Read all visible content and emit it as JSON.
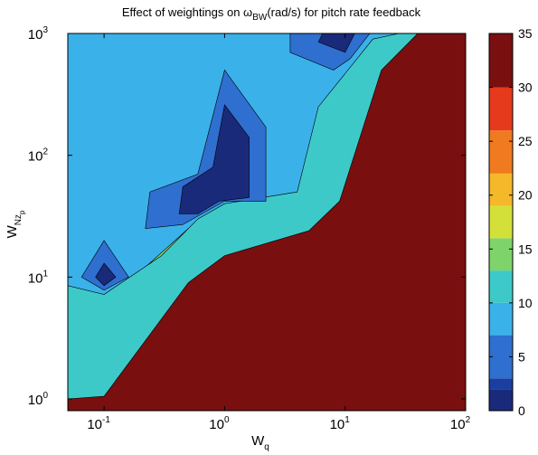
{
  "chart_data": {
    "type": "contour",
    "title": {
      "prefix": "Effect of weightings on ",
      "symbol": "ω",
      "symbol_sub": "BW",
      "suffix": "(rad/s) for pitch rate feedback"
    },
    "xlabel": {
      "base": "W",
      "sub": "q"
    },
    "ylabel": {
      "base": "W",
      "sub": "Nz",
      "subsub": "p"
    },
    "x_scale": "log",
    "y_scale": "log",
    "xlim": [
      0.05,
      100
    ],
    "ylim": [
      0.8,
      1000
    ],
    "x_ticks": [
      {
        "base": "10",
        "exp": "-1",
        "value": 0.1
      },
      {
        "base": "10",
        "exp": "0",
        "value": 1
      },
      {
        "base": "10",
        "exp": "1",
        "value": 10
      },
      {
        "base": "10",
        "exp": "2",
        "value": 100
      }
    ],
    "y_ticks": [
      {
        "base": "10",
        "exp": "0",
        "value": 1
      },
      {
        "base": "10",
        "exp": "1",
        "value": 10
      },
      {
        "base": "10",
        "exp": "2",
        "value": 100
      },
      {
        "base": "10",
        "exp": "3",
        "value": 1000
      }
    ],
    "colorbar": {
      "min": 0,
      "max": 35,
      "ticks": [
        "0",
        "5",
        "10",
        "15",
        "20",
        "25",
        "30",
        "35"
      ]
    },
    "levels": [
      {
        "value": 3,
        "color": "#1b3fa0"
      },
      {
        "value": 7,
        "color": "#2f6fcf"
      },
      {
        "value": 10,
        "color": "#3bb1ea"
      },
      {
        "value": 13,
        "color": "#3ec9c9"
      },
      {
        "value": 16,
        "color": "#7ed46a"
      },
      {
        "value": 19,
        "color": "#d3e03a"
      },
      {
        "value": 22,
        "color": "#f5b82a"
      },
      {
        "value": 26,
        "color": "#f07a1f"
      },
      {
        "value": 30,
        "color": "#e63a1c"
      },
      {
        "value": 35,
        "color": "#7a0f10"
      }
    ],
    "background_value": 2,
    "background_color": "#1a2a7a",
    "upper_region_color": "#3bb1ea",
    "regions": [
      {
        "name": "red-region",
        "color": "#e63a1c",
        "points": [
          [
            0.05,
            3
          ],
          [
            0.1,
            2.4
          ],
          [
            0.5,
            10
          ],
          [
            1,
            16
          ],
          [
            5,
            25
          ],
          [
            10,
            45
          ],
          [
            20,
            600
          ],
          [
            50,
            1000
          ],
          [
            100,
            1000
          ],
          [
            100,
            0.8
          ],
          [
            0.05,
            0.8
          ]
        ]
      },
      {
        "name": "orange-region",
        "color": "#f07a1f",
        "points": [
          [
            0.05,
            4.5
          ],
          [
            0.1,
            3.2
          ],
          [
            0.5,
            14
          ],
          [
            1,
            22
          ],
          [
            5,
            30
          ],
          [
            8,
            100
          ],
          [
            20,
            600
          ],
          [
            40,
            1000
          ],
          [
            100,
            1000
          ],
          [
            100,
            0.8
          ],
          [
            0.05,
            0.8
          ]
        ]
      },
      {
        "name": "yellow-region",
        "color": "#f5b82a",
        "points": [
          [
            0.05,
            5.5
          ],
          [
            0.1,
            4.2
          ],
          [
            0.5,
            17
          ],
          [
            1,
            26
          ],
          [
            5,
            36
          ],
          [
            8,
            130
          ],
          [
            20,
            700
          ],
          [
            35,
            1000
          ],
          [
            100,
            1000
          ],
          [
            100,
            0.8
          ],
          [
            0.05,
            0.8
          ]
        ]
      },
      {
        "name": "lime-region",
        "color": "#d3e03a",
        "points": [
          [
            0.05,
            6.5
          ],
          [
            0.1,
            5.2
          ],
          [
            0.5,
            21
          ],
          [
            1,
            31
          ],
          [
            5,
            42
          ],
          [
            7,
            170
          ],
          [
            20,
            800
          ],
          [
            32,
            1000
          ],
          [
            100,
            1000
          ],
          [
            100,
            0.8
          ],
          [
            0.05,
            0.8
          ]
        ]
      },
      {
        "name": "green-region",
        "color": "#7ed46a",
        "points": [
          [
            0.05,
            7.5
          ],
          [
            0.1,
            6
          ],
          [
            0.5,
            25
          ],
          [
            1,
            36
          ],
          [
            4.5,
            50
          ],
          [
            6.5,
            200
          ],
          [
            18,
            850
          ],
          [
            30,
            1000
          ],
          [
            100,
            1000
          ],
          [
            100,
            0.8
          ],
          [
            0.05,
            0.8
          ]
        ]
      },
      {
        "name": "teal-region",
        "color": "#3ec9c9",
        "points": [
          [
            0.05,
            8.5
          ],
          [
            0.1,
            7.2
          ],
          [
            0.3,
            15
          ],
          [
            0.6,
            30
          ],
          [
            1,
            40
          ],
          [
            4,
            50
          ],
          [
            6,
            250
          ],
          [
            17,
            900
          ],
          [
            28,
            1000
          ],
          [
            100,
            1000
          ],
          [
            100,
            0.8
          ],
          [
            0.05,
            0.8
          ]
        ]
      },
      {
        "name": "dark-red-region",
        "color": "#7a0f10",
        "points": [
          [
            0.05,
            1
          ],
          [
            0.1,
            1.05
          ],
          [
            0.5,
            9
          ],
          [
            1,
            15
          ],
          [
            5,
            24
          ],
          [
            9,
            42
          ],
          [
            20,
            500
          ],
          [
            40,
            1000
          ],
          [
            100,
            1000
          ],
          [
            100,
            0.8
          ],
          [
            0.05,
            0.8
          ]
        ]
      },
      {
        "name": "blue-island-left",
        "color": "#2f6fcf",
        "points": [
          [
            0.065,
            10
          ],
          [
            0.1,
            20
          ],
          [
            0.16,
            10
          ],
          [
            0.1,
            7.8
          ]
        ]
      },
      {
        "name": "navy-island-left",
        "color": "#1a2a7a",
        "points": [
          [
            0.085,
            10
          ],
          [
            0.1,
            13
          ],
          [
            0.125,
            10
          ],
          [
            0.1,
            8.5
          ]
        ]
      },
      {
        "name": "blue-island-center",
        "color": "#2f6fcf",
        "points": [
          [
            0.22,
            25
          ],
          [
            0.24,
            50
          ],
          [
            0.6,
            70
          ],
          [
            1,
            500
          ],
          [
            2.2,
            170
          ],
          [
            2.2,
            42
          ],
          [
            1,
            42
          ],
          [
            0.45,
            27
          ]
        ]
      },
      {
        "name": "navy-island-center",
        "color": "#1a2a7a",
        "points": [
          [
            0.42,
            33
          ],
          [
            0.45,
            55
          ],
          [
            0.8,
            80
          ],
          [
            1,
            260
          ],
          [
            1.6,
            140
          ],
          [
            1.6,
            45
          ],
          [
            0.9,
            42
          ],
          [
            0.6,
            33
          ]
        ]
      },
      {
        "name": "blue-island-top",
        "color": "#2f6fcf",
        "points": [
          [
            3.5,
            700
          ],
          [
            3.5,
            1000
          ],
          [
            16,
            1000
          ],
          [
            11,
            620
          ],
          [
            8,
            500
          ]
        ]
      },
      {
        "name": "navy-island-top",
        "color": "#1a2a7a",
        "points": [
          [
            6,
            850
          ],
          [
            6.5,
            1000
          ],
          [
            12,
            1000
          ],
          [
            10,
            700
          ]
        ]
      }
    ]
  }
}
